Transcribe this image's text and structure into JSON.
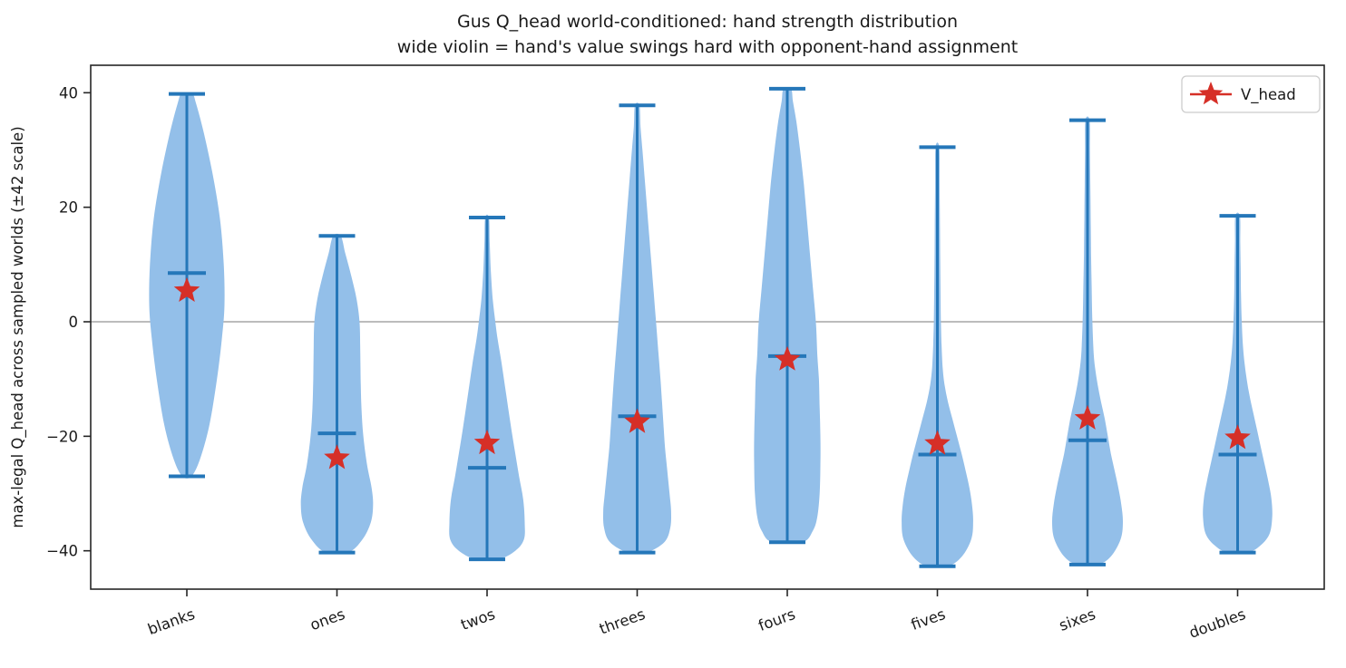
{
  "chart_data": {
    "type": "violin",
    "title": "Gus Q_head world-conditioned: hand strength distribution",
    "subtitle": "wide violin = hand's value swings hard with opponent-hand assignment",
    "ylabel": "max-legal Q_head across sampled worlds (±42 scale)",
    "xlabel": "",
    "ylim": [
      -46.7,
      44.8
    ],
    "yticks": [
      40,
      20,
      0,
      -20,
      -40
    ],
    "ytick_labels": [
      "40",
      "20",
      "0",
      "−20",
      "−40"
    ],
    "zero_line": 0,
    "grid": false,
    "legend": {
      "label": "V_head",
      "marker": "star",
      "position": "upper right"
    },
    "colors": {
      "violin_fill": "#93bfe9",
      "violin_line": "#2577b9",
      "star": "#d62f27",
      "zero_line": "#a6a6a6",
      "axis": "#262626"
    },
    "categories": [
      "blanks",
      "ones",
      "twos",
      "threes",
      "fours",
      "fives",
      "sixes",
      "doubles"
    ],
    "series": [
      {
        "category": "blanks",
        "min": -27.0,
        "max": 39.8,
        "mean": 8.5,
        "v_head": 5.4,
        "profile": [
          [
            -27.0,
            0.12
          ],
          [
            -24,
            0.35
          ],
          [
            -18,
            0.6
          ],
          [
            -10,
            0.8
          ],
          [
            -3,
            0.93
          ],
          [
            3,
            1.0
          ],
          [
            10,
            0.98
          ],
          [
            18,
            0.88
          ],
          [
            26,
            0.68
          ],
          [
            33,
            0.45
          ],
          [
            38,
            0.25
          ],
          [
            39.8,
            0.14
          ]
        ]
      },
      {
        "category": "ones",
        "min": -40.3,
        "max": 15.0,
        "mean": -19.5,
        "v_head": -23.8,
        "profile": [
          [
            -40.3,
            0.3
          ],
          [
            -38,
            0.68
          ],
          [
            -35,
            0.9
          ],
          [
            -32,
            0.96
          ],
          [
            -29,
            0.92
          ],
          [
            -25,
            0.8
          ],
          [
            -20,
            0.7
          ],
          [
            -15,
            0.65
          ],
          [
            -10,
            0.63
          ],
          [
            -5,
            0.62
          ],
          [
            0,
            0.6
          ],
          [
            4,
            0.52
          ],
          [
            8,
            0.38
          ],
          [
            12,
            0.22
          ],
          [
            15,
            0.1
          ]
        ]
      },
      {
        "category": "twos",
        "min": -41.5,
        "max": 18.2,
        "mean": -25.5,
        "v_head": -21.2,
        "profile": [
          [
            -41.5,
            0.3
          ],
          [
            -40,
            0.75
          ],
          [
            -38,
            0.98
          ],
          [
            -35,
            1.0
          ],
          [
            -31,
            0.96
          ],
          [
            -27,
            0.85
          ],
          [
            -23,
            0.75
          ],
          [
            -19,
            0.65
          ],
          [
            -15,
            0.56
          ],
          [
            -11,
            0.47
          ],
          [
            -7,
            0.38
          ],
          [
            -3,
            0.28
          ],
          [
            0,
            0.22
          ],
          [
            4,
            0.15
          ],
          [
            9,
            0.1
          ],
          [
            14,
            0.07
          ],
          [
            18.2,
            0.05
          ]
        ]
      },
      {
        "category": "threes",
        "min": -40.3,
        "max": 37.8,
        "mean": -16.5,
        "v_head": -17.5,
        "profile": [
          [
            -40.3,
            0.25
          ],
          [
            -38.5,
            0.72
          ],
          [
            -36,
            0.88
          ],
          [
            -33,
            0.9
          ],
          [
            -30,
            0.86
          ],
          [
            -26,
            0.8
          ],
          [
            -22,
            0.74
          ],
          [
            -18,
            0.7
          ],
          [
            -14,
            0.66
          ],
          [
            -10,
            0.62
          ],
          [
            -5,
            0.56
          ],
          [
            0,
            0.5
          ],
          [
            5,
            0.44
          ],
          [
            10,
            0.38
          ],
          [
            15,
            0.32
          ],
          [
            20,
            0.26
          ],
          [
            25,
            0.2
          ],
          [
            30,
            0.14
          ],
          [
            34,
            0.09
          ],
          [
            37.8,
            0.06
          ]
        ]
      },
      {
        "category": "fours",
        "min": -38.5,
        "max": 40.7,
        "mean": -6.0,
        "v_head": -6.6,
        "profile": [
          [
            -38.5,
            0.4
          ],
          [
            -36.5,
            0.68
          ],
          [
            -34,
            0.8
          ],
          [
            -30,
            0.86
          ],
          [
            -25,
            0.88
          ],
          [
            -20,
            0.88
          ],
          [
            -15,
            0.86
          ],
          [
            -10,
            0.84
          ],
          [
            -6,
            0.8
          ],
          [
            0,
            0.76
          ],
          [
            6,
            0.68
          ],
          [
            12,
            0.6
          ],
          [
            18,
            0.52
          ],
          [
            24,
            0.44
          ],
          [
            30,
            0.34
          ],
          [
            35,
            0.24
          ],
          [
            38.5,
            0.15
          ],
          [
            40.7,
            0.1
          ]
        ]
      },
      {
        "category": "fives",
        "min": -42.7,
        "max": 30.5,
        "mean": -23.2,
        "v_head": -21.3,
        "profile": [
          [
            -42.7,
            0.28
          ],
          [
            -41,
            0.65
          ],
          [
            -38,
            0.9
          ],
          [
            -35,
            0.95
          ],
          [
            -32,
            0.92
          ],
          [
            -29,
            0.85
          ],
          [
            -26,
            0.75
          ],
          [
            -23,
            0.64
          ],
          [
            -20,
            0.52
          ],
          [
            -17,
            0.4
          ],
          [
            -14,
            0.28
          ],
          [
            -11,
            0.19
          ],
          [
            -8,
            0.14
          ],
          [
            -4,
            0.11
          ],
          [
            0,
            0.095
          ],
          [
            8,
            0.08
          ],
          [
            16,
            0.07
          ],
          [
            24,
            0.06
          ],
          [
            30.5,
            0.05
          ]
        ]
      },
      {
        "category": "sixes",
        "min": -42.4,
        "max": 35.2,
        "mean": -20.7,
        "v_head": -16.9,
        "profile": [
          [
            -42.4,
            0.28
          ],
          [
            -41,
            0.62
          ],
          [
            -38,
            0.88
          ],
          [
            -35,
            0.94
          ],
          [
            -32,
            0.9
          ],
          [
            -29,
            0.82
          ],
          [
            -26,
            0.72
          ],
          [
            -23,
            0.62
          ],
          [
            -20,
            0.54
          ],
          [
            -17,
            0.46
          ],
          [
            -14,
            0.36
          ],
          [
            -11,
            0.27
          ],
          [
            -8,
            0.2
          ],
          [
            -5,
            0.16
          ],
          [
            0,
            0.13
          ],
          [
            6,
            0.11
          ],
          [
            12,
            0.095
          ],
          [
            18,
            0.085
          ],
          [
            24,
            0.075
          ],
          [
            30,
            0.065
          ],
          [
            35.2,
            0.055
          ]
        ]
      },
      {
        "category": "doubles",
        "min": -40.3,
        "max": 18.5,
        "mean": -23.2,
        "v_head": -20.3,
        "profile": [
          [
            -40.3,
            0.28
          ],
          [
            -39,
            0.62
          ],
          [
            -37,
            0.85
          ],
          [
            -34,
            0.92
          ],
          [
            -31,
            0.9
          ],
          [
            -28,
            0.82
          ],
          [
            -25,
            0.72
          ],
          [
            -22,
            0.62
          ],
          [
            -19,
            0.52
          ],
          [
            -16,
            0.42
          ],
          [
            -13,
            0.32
          ],
          [
            -10,
            0.24
          ],
          [
            -7,
            0.18
          ],
          [
            -4,
            0.14
          ],
          [
            0,
            0.11
          ],
          [
            5,
            0.09
          ],
          [
            10,
            0.08
          ],
          [
            14,
            0.07
          ],
          [
            18.5,
            0.06
          ]
        ]
      }
    ]
  }
}
